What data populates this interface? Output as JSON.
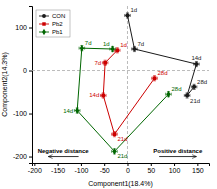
{
  "chart_data": {
    "type": "line",
    "xlabel": "Component1(18.4%)",
    "ylabel": "Component2(14.3%)",
    "xlim": [
      -205,
      175
    ],
    "ylim": [
      -215,
      150
    ],
    "xticks": [
      -200,
      -150,
      -100,
      -50,
      0,
      50,
      100,
      150
    ],
    "yticks": [
      -200,
      -100,
      0,
      100
    ],
    "grid": false,
    "legend": "upper left",
    "reference_lines": [
      {
        "x": 0
      },
      {
        "y": 0
      }
    ],
    "series": [
      {
        "name": "CON",
        "color": "#1a1a1a",
        "marker": "circle",
        "x": [
          0,
          15,
          148,
          128,
          143
        ],
        "values": [
          128,
          50,
          15,
          -58,
          -38
        ],
        "x_errors": [
          6,
          6,
          6,
          6,
          6
        ],
        "y_errors": [
          6,
          6,
          6,
          6,
          6
        ],
        "point_labels": [
          "1d",
          "7d",
          "14d",
          "21d",
          "28d"
        ]
      },
      {
        "name": "Pb2",
        "color": "#cc0000",
        "marker": "square",
        "x": [
          -22,
          -48,
          -52,
          -28,
          58
        ],
        "values": [
          47,
          18,
          -58,
          -148,
          -18
        ],
        "x_errors": [
          6,
          6,
          6,
          6,
          6
        ],
        "y_errors": [
          6,
          6,
          6,
          6,
          6
        ],
        "point_labels": [
          "1d",
          "7d",
          "14d",
          "21d",
          "28d"
        ]
      },
      {
        "name": "Pb1",
        "color": "#006600",
        "marker": "diamond",
        "x": [
          -32,
          -98,
          -108,
          -28,
          88
        ],
        "values": [
          50,
          52,
          -93,
          -188,
          -55
        ],
        "x_errors": [
          6,
          6,
          6,
          6,
          6
        ],
        "y_errors": [
          6,
          6,
          6,
          6,
          6
        ],
        "point_labels": [
          "1d",
          "7d",
          "14d",
          "21d",
          "28d"
        ]
      }
    ],
    "annotations": [
      {
        "text": "Negative distance",
        "x": -138,
        "y": -192,
        "arrow_from": -105,
        "arrow_to": -170,
        "arrow_y": -200
      },
      {
        "text": "Positive distance",
        "x": 108,
        "y": -192,
        "arrow_from": 68,
        "arrow_to": 148,
        "arrow_y": -200
      }
    ]
  }
}
